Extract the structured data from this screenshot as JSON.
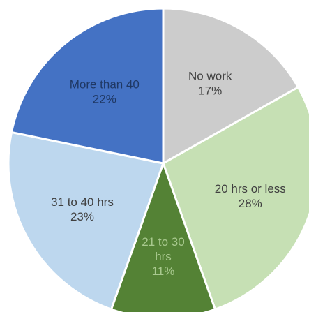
{
  "chart_data": {
    "type": "pie",
    "title": "",
    "start_angle_deg": 0,
    "direction": "clockwise",
    "slices": [
      {
        "label_lines": [
          "No work"
        ],
        "value": 17,
        "percent_label": "17%",
        "color": "#cccccc",
        "text_color": "#404040"
      },
      {
        "label_lines": [
          "20 hrs or less"
        ],
        "value": 28,
        "percent_label": "28%",
        "color": "#c6e0b4",
        "text_color": "#404040"
      },
      {
        "label_lines": [
          "21 to 30",
          "hrs"
        ],
        "value": 11,
        "percent_label": "11%",
        "color": "#548235",
        "text_color": "#a9c98f"
      },
      {
        "label_lines": [
          "31 to 40 hrs"
        ],
        "value": 23,
        "percent_label": "23%",
        "color": "#bdd7ee",
        "text_color": "#404040"
      },
      {
        "label_lines": [
          "More than 40"
        ],
        "value": 22,
        "percent_label": "22%",
        "color": "#4472c4",
        "text_color": "#1f3864"
      }
    ]
  }
}
